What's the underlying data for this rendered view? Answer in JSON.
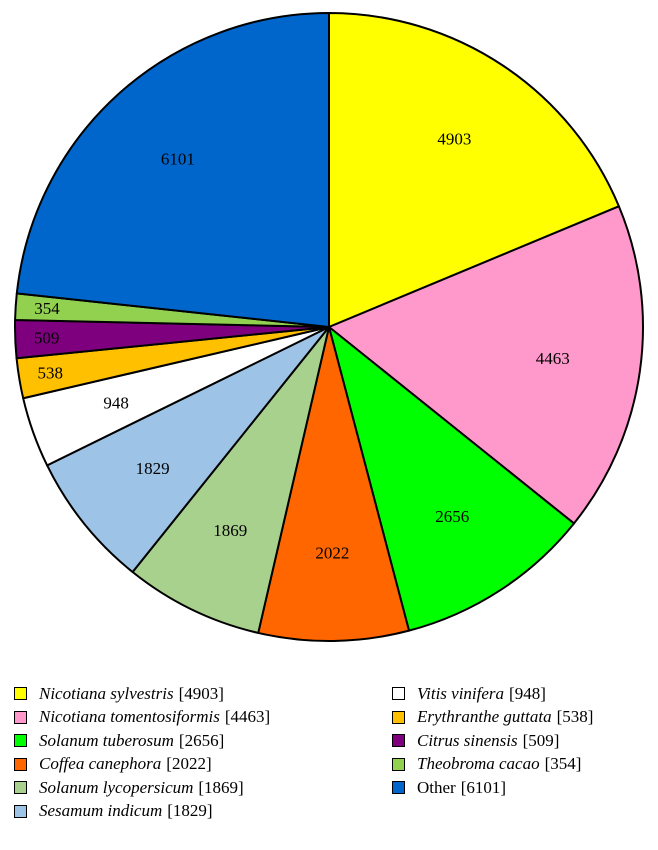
{
  "chart_data": {
    "type": "pie",
    "title": "",
    "start_angle_deg": 90,
    "direction": "clockwise",
    "slices": [
      {
        "label": "Nicotiana sylvestris",
        "legend_value": "[4903]",
        "value": 4903,
        "value_label": "4903",
        "color": "#ffff00",
        "italic": true
      },
      {
        "label": "Nicotiana tomentosiformis",
        "legend_value": "[4463]",
        "value": 4463,
        "value_label": "4463",
        "color": "#ff99cc",
        "italic": true
      },
      {
        "label": "Solanum tuberosum",
        "legend_value": "[2656]",
        "value": 2656,
        "value_label": "2656",
        "color": "#00ff00",
        "italic": true
      },
      {
        "label": "Coffea canephora",
        "legend_value": "[2022]",
        "value": 2022,
        "value_label": "2022",
        "color": "#ff6600",
        "italic": true
      },
      {
        "label": "Solanum lycopersicum",
        "legend_value": "[1869]",
        "value": 1869,
        "value_label": "1869",
        "color": "#a9d18e",
        "italic": true
      },
      {
        "label": "Sesamum indicum",
        "legend_value": "[1829]",
        "value": 1829,
        "value_label": "1829",
        "color": "#9dc3e6",
        "italic": true
      },
      {
        "label": "Vitis vinifera",
        "legend_value": "[948]",
        "value": 948,
        "value_label": "948",
        "color": "#ffffff",
        "italic": true
      },
      {
        "label": "Erythranthe guttata",
        "legend_value": "[538]",
        "value": 538,
        "value_label": "538",
        "color": "#ffc000",
        "italic": true
      },
      {
        "label": "Citrus sinensis",
        "legend_value": "[509]",
        "value": 509,
        "value_label": "509",
        "color": "#7f007f",
        "italic": true
      },
      {
        "label": "Theobroma cacao",
        "legend_value": "[354]",
        "value": 354,
        "value_label": "354",
        "color": "#92d050",
        "italic": true
      },
      {
        "label": "Other",
        "legend_value": "[6101]",
        "value": 6101,
        "value_label": "6101",
        "color": "#0066cc",
        "italic": false
      }
    ],
    "legend_placement": "bottom",
    "legend_columns": [
      [
        0,
        1,
        2,
        3,
        4,
        5
      ],
      [
        6,
        7,
        8,
        9,
        10
      ]
    ]
  }
}
